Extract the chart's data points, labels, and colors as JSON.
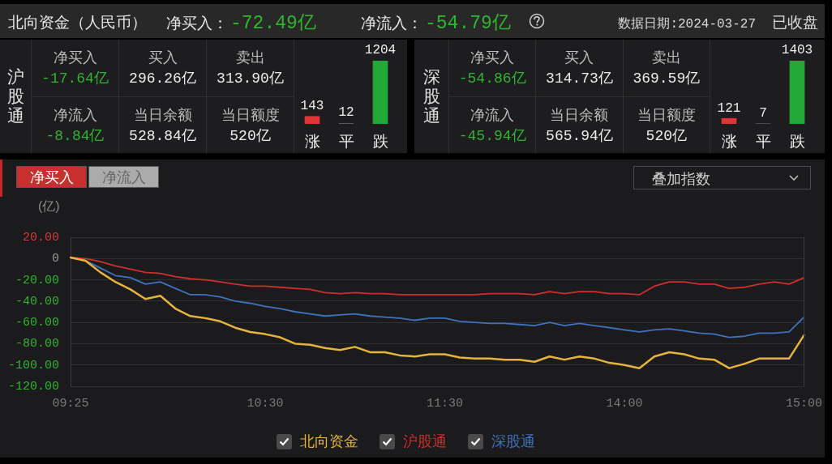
{
  "chart_data": [
    {
      "type": "other",
      "title": "北向资金（人民币）",
      "annotations": [
        "净买入：",
        "-72.49亿",
        "净流入：",
        "-54.79亿",
        "数据日期:2024-03-27",
        "已收盘"
      ]
    },
    {
      "type": "other",
      "title": "沪股通",
      "annotations": [
        "净买入",
        "-17.64亿",
        "买入",
        "296.26亿",
        "卖出",
        "313.90亿",
        "净流入",
        "-8.84亿",
        "当日余额",
        "528.84亿",
        "当日额度",
        "520亿"
      ]
    },
    {
      "type": "bar",
      "categories": [
        "涨",
        "平",
        "跌"
      ],
      "values": [
        143,
        12,
        1204
      ],
      "colors": [
        "#e03535",
        "#5a5a5a",
        "#22aa38"
      ],
      "data_labels": true
    },
    {
      "type": "other",
      "title": "深股通",
      "annotations": [
        "净买入",
        "-54.86亿",
        "买入",
        "314.73亿",
        "卖出",
        "369.59亿",
        "净流入",
        "-45.94亿",
        "当日余额",
        "565.94亿",
        "当日额度",
        "520亿"
      ]
    },
    {
      "type": "bar",
      "categories": [
        "涨",
        "平",
        "跌"
      ],
      "values": [
        121,
        7,
        1403
      ],
      "colors": [
        "#e03535",
        "#5a5a5a",
        "#22aa38"
      ],
      "data_labels": true
    },
    {
      "type": "line",
      "ylabel": "(亿)",
      "annotations": [
        "净买入",
        "净流入",
        "叠加指数"
      ],
      "categories": [
        "09:25",
        null,
        null,
        null,
        null,
        null,
        null,
        null,
        null,
        null,
        null,
        null,
        null,
        "10:30",
        null,
        null,
        null,
        null,
        null,
        null,
        null,
        null,
        null,
        null,
        null,
        "11:30",
        null,
        null,
        null,
        null,
        null,
        null,
        null,
        null,
        null,
        null,
        null,
        "14:00",
        null,
        null,
        null,
        null,
        null,
        null,
        null,
        null,
        null,
        null,
        null,
        "15:00"
      ],
      "series": [
        {
          "name": "北向资金",
          "color": "#e6b43c",
          "values": [
            1,
            -2,
            -13,
            -22,
            -29,
            -38,
            -35,
            -47,
            -54,
            -56,
            -59,
            -65,
            -69,
            -71,
            -74,
            -80,
            -81,
            -84,
            -86,
            -83,
            -88,
            -88,
            -91,
            -92,
            -90,
            -90,
            -93,
            -94,
            -94,
            -95,
            -95,
            -97,
            -92,
            -95,
            -92,
            -94,
            -98,
            -100,
            -103,
            -92,
            -88,
            -90,
            -94,
            -95,
            -103,
            -99,
            -94,
            -94,
            -94,
            -72
          ]
        },
        {
          "name": "沪股通",
          "color": "#cc2f2c",
          "values": [
            1,
            0,
            -3,
            -7,
            -10,
            -13,
            -14,
            -17,
            -19,
            -20,
            -22,
            -24,
            -26,
            -26,
            -27,
            -28,
            -29,
            -32,
            -33,
            -32,
            -33,
            -33,
            -34,
            -34,
            -34,
            -34,
            -34,
            -34,
            -33,
            -33,
            -33,
            -34,
            -31,
            -33,
            -31,
            -31,
            -33,
            -33,
            -34,
            -26,
            -22,
            -22,
            -24,
            -24,
            -28,
            -27,
            -24,
            -22,
            -24,
            -18
          ]
        },
        {
          "name": "深股通",
          "color": "#3f72bd",
          "values": [
            1,
            -2,
            -9,
            -16,
            -18,
            -24,
            -22,
            -28,
            -34,
            -34,
            -36,
            -40,
            -42,
            -45,
            -47,
            -50,
            -52,
            -54,
            -53,
            -52,
            -54,
            -55,
            -56,
            -58,
            -56,
            -56,
            -59,
            -60,
            -61,
            -61,
            -62,
            -63,
            -60,
            -63,
            -61,
            -63,
            -65,
            -67,
            -69,
            -67,
            -66,
            -68,
            -70,
            -71,
            -74,
            -73,
            -70,
            -70,
            -69,
            -55
          ]
        }
      ],
      "ylim": [
        -120,
        20
      ],
      "yticks": [
        {
          "value": -120,
          "label": "-120.00"
        },
        {
          "value": -100,
          "label": "-100.00"
        },
        {
          "value": -80,
          "label": "-80.00"
        },
        {
          "value": -60,
          "label": "-60.00"
        },
        {
          "value": -40,
          "label": "-40.00"
        },
        {
          "value": -20,
          "label": "-20.00"
        },
        0,
        {
          "value": 20,
          "label": "20.00"
        }
      ],
      "grid": "y",
      "legend": "bottom"
    }
  ]
}
